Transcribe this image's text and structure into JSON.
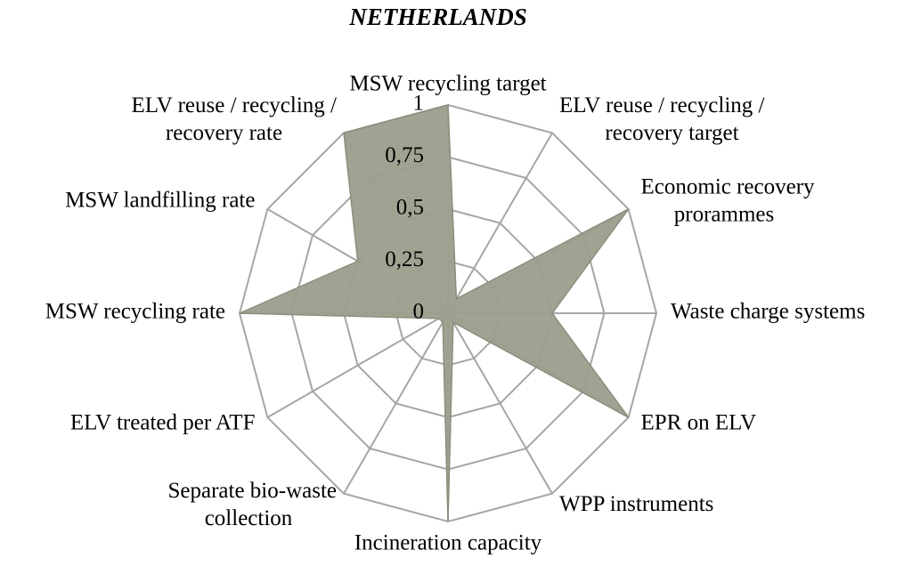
{
  "chart_data": {
    "type": "radar",
    "title": "NETHERLANDS",
    "categories": [
      "MSW recycling target",
      "ELV reuse / recycling / recovery target",
      "Economic recovery prorammes",
      "Waste charge systems",
      "EPR on ELV",
      "WPP instruments",
      "Incineration capacity",
      "Separate bio-waste collection",
      "ELV treated per ATF",
      "MSW recycling rate",
      "MSW landfilling rate",
      "ELV reuse / recycling / recovery rate"
    ],
    "values": [
      1,
      0.08,
      1,
      0.5,
      1,
      0.05,
      1,
      0.05,
      0.05,
      1,
      0.5,
      1
    ],
    "color": "#9a9f8c",
    "ylim": [
      0,
      1
    ],
    "yticks": [
      {
        "value": 0,
        "label": "0"
      },
      {
        "value": 0.25,
        "label": "0,25"
      },
      {
        "value": 0.5,
        "label": "0,5"
      },
      {
        "value": 0.75,
        "label": "0,75"
      },
      {
        "value": 1,
        "label": "1"
      }
    ],
    "grid": true
  }
}
